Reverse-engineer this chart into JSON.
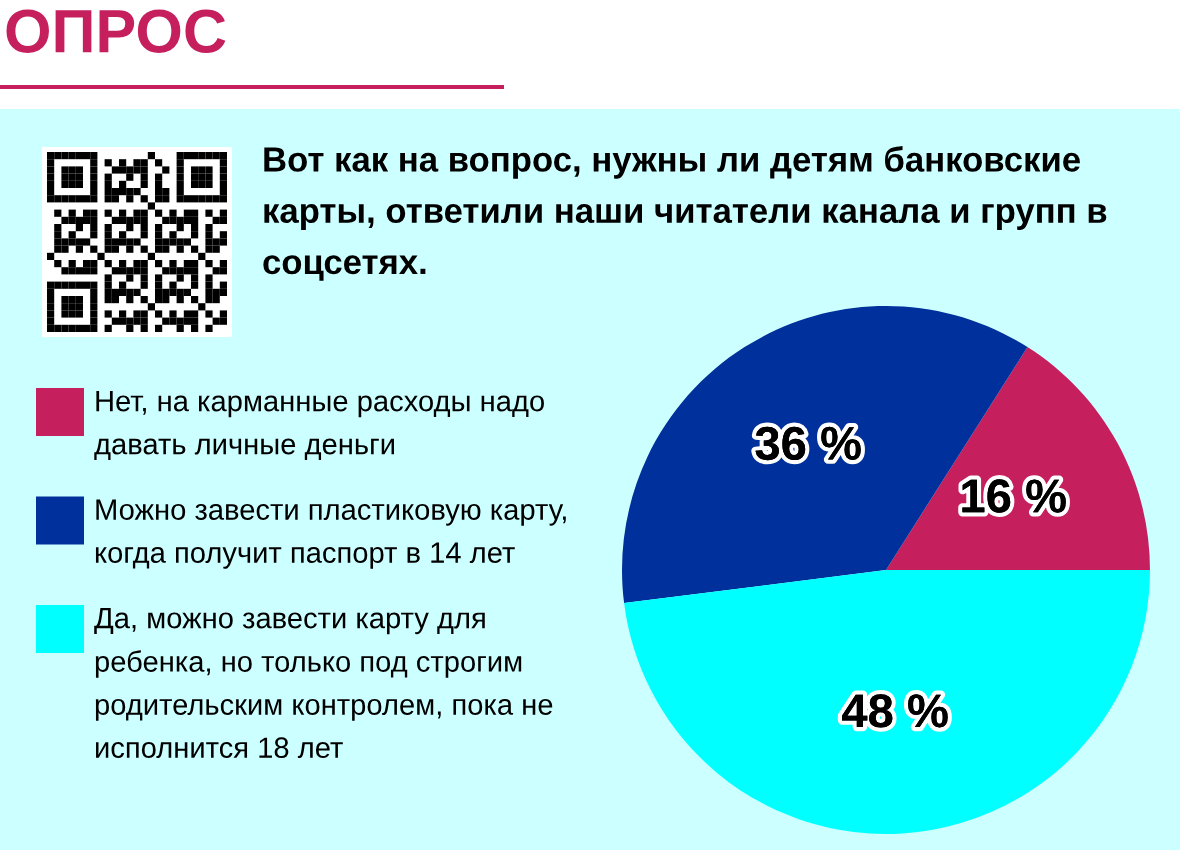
{
  "chart_data": {
    "type": "pie",
    "title": "ОПРОС",
    "subtitle": "Вот как на вопрос, нужны ли детям банковские карты, ответили наши читатели канала и групп в соцсетях.",
    "categories": [
      "Нет, на карманные расходы надо давать личные деньги",
      "Можно завести пластиковую карту, когда получит паспорт в 14 лет",
      "Да, можно завести карту для ребенка, но только под строгим родительским контролем, пока не исполнится 18 лет"
    ],
    "values": [
      16,
      36,
      48
    ],
    "colors": [
      "#c51f5d",
      "#00309b",
      "#00ffff"
    ],
    "value_labels": [
      "16 %",
      "36 %",
      "48 %"
    ],
    "legend": "left"
  }
}
